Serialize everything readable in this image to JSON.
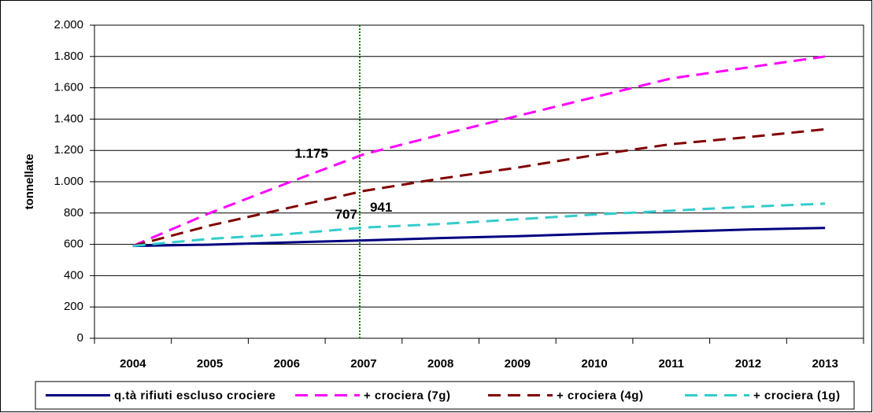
{
  "chart_data": {
    "type": "line",
    "y_label": "tonnellate",
    "categories": [
      "2004",
      "2005",
      "2006",
      "2007",
      "2008",
      "2009",
      "2010",
      "2011",
      "2012",
      "2013"
    ],
    "series": [
      {
        "name": "q.tà rifiuti escluso crociere",
        "color": "#000080",
        "dash": "solid",
        "values": [
          590,
          598,
          612,
          625,
          640,
          652,
          668,
          680,
          695,
          705
        ]
      },
      {
        "name": "+ crociera (7g)",
        "color": "#ff00ff",
        "dash": "dashed",
        "values": [
          590,
          800,
          990,
          1175,
          1300,
          1420,
          1540,
          1660,
          1730,
          1800
        ],
        "value_labels": [
          null,
          null,
          null,
          "1.175",
          null,
          null,
          null,
          null,
          null,
          null
        ]
      },
      {
        "name": "+ crociera (4g)",
        "color": "#800000",
        "dash": "dashed",
        "values": [
          590,
          720,
          830,
          941,
          1020,
          1090,
          1170,
          1240,
          1285,
          1335
        ],
        "value_labels": [
          null,
          null,
          null,
          "941",
          null,
          null,
          null,
          null,
          null,
          null
        ]
      },
      {
        "name": "+ crociera (1g)",
        "color": "#33cccc",
        "dash": "dashed",
        "values": [
          590,
          635,
          665,
          707,
          730,
          760,
          790,
          815,
          840,
          860
        ],
        "value_labels": [
          null,
          null,
          null,
          "707",
          null,
          null,
          null,
          null,
          null,
          null
        ]
      }
    ],
    "ylim": [
      0,
      2000
    ],
    "yticks": [
      0,
      200,
      400,
      600,
      800,
      {
        "value": 1000,
        "label": "1.000"
      },
      {
        "value": 1200,
        "label": "1.200"
      },
      {
        "value": 1400,
        "label": "1.400"
      },
      {
        "value": 1600,
        "label": "1.600"
      },
      {
        "value": 1800,
        "label": "1.800"
      },
      {
        "value": 2000,
        "label": "2.000"
      }
    ],
    "grid": true,
    "reference_line": {
      "category": "2007",
      "color": "#008000"
    },
    "legend": "bottom"
  }
}
